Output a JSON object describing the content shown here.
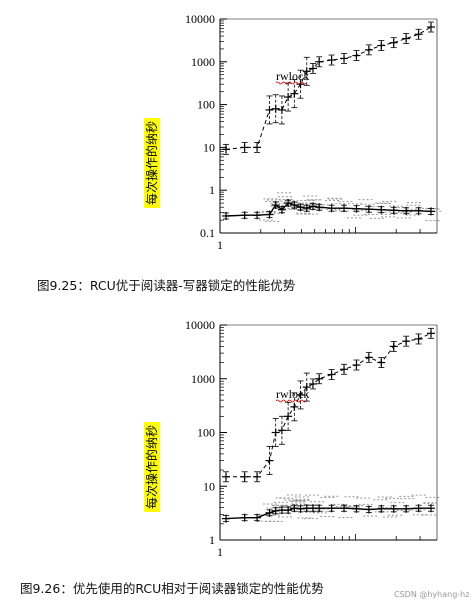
{
  "captions": {
    "fig1": "图9.25：RCU优于阅读器-写器锁定的性能优势",
    "fig2": "图9.26：优先使用的RCU相对于阅读器锁定的性能优势"
  },
  "watermark": "CSDN @hyhang-hz",
  "colors": {
    "highlight": "#ffff00",
    "rcu_line": "#000000",
    "rw_line": "#000000",
    "scatter": "#999999",
    "underline": "#cc0000"
  },
  "chart_data": [
    {
      "type": "line",
      "ylabel": "每次操作的纳秒",
      "xlabel": "",
      "annotation": "rwlock",
      "y_scale": "log",
      "ylim": [
        0.1,
        10000
      ],
      "xlim": [
        1,
        34
      ],
      "yticks": [
        "0.1",
        "1",
        "10",
        "100",
        "1000",
        "10000"
      ],
      "xticks": [
        "1"
      ],
      "series": [
        {
          "name": "rwlock",
          "style": "dashed",
          "x": [
            1,
            4,
            6,
            8,
            9,
            10,
            11,
            12,
            13,
            14,
            15,
            16,
            18,
            20,
            22,
            24,
            26,
            28,
            30,
            32,
            34
          ],
          "y": [
            9,
            10,
            10,
            75,
            80,
            75,
            150,
            180,
            300,
            600,
            700,
            1000,
            1100,
            1200,
            1400,
            1900,
            2400,
            2800,
            3500,
            4400,
            6500
          ]
        },
        {
          "name": "rcu",
          "style": "solid",
          "x": [
            1,
            4,
            6,
            8,
            9,
            10,
            11,
            12,
            13,
            14,
            15,
            16,
            18,
            20,
            22,
            24,
            26,
            28,
            30,
            32,
            34
          ],
          "y": [
            0.25,
            0.26,
            0.26,
            0.27,
            0.45,
            0.35,
            0.5,
            0.45,
            0.4,
            0.38,
            0.42,
            0.4,
            0.38,
            0.38,
            0.37,
            0.36,
            0.35,
            0.34,
            0.33,
            0.33,
            0.32
          ]
        }
      ]
    },
    {
      "type": "line",
      "ylabel": "每次操作的纳秒",
      "xlabel": "",
      "annotation": "rwlock",
      "y_scale": "log",
      "ylim": [
        1,
        10000
      ],
      "xlim": [
        1,
        34
      ],
      "yticks": [
        "1",
        "10",
        "100",
        "1000",
        "10000"
      ],
      "xticks": [
        "1"
      ],
      "series": [
        {
          "name": "rwlock",
          "style": "dashed",
          "x": [
            1,
            4,
            6,
            8,
            9,
            10,
            11,
            12,
            13,
            14,
            15,
            16,
            18,
            20,
            22,
            24,
            26,
            28,
            30,
            32,
            34
          ],
          "y": [
            15,
            15,
            15,
            30,
            100,
            110,
            200,
            300,
            500,
            700,
            800,
            1000,
            1200,
            1500,
            1800,
            2500,
            2000,
            4000,
            5000,
            5500,
            7000
          ]
        },
        {
          "name": "rcu",
          "style": "solid",
          "x": [
            1,
            4,
            6,
            8,
            9,
            10,
            11,
            12,
            13,
            14,
            15,
            16,
            18,
            20,
            22,
            24,
            26,
            28,
            30,
            32,
            34
          ],
          "y": [
            2.5,
            2.6,
            2.6,
            3.2,
            3.5,
            3.6,
            3.6,
            3.9,
            3.8,
            3.9,
            3.9,
            3.9,
            3.9,
            3.9,
            3.8,
            3.7,
            3.8,
            3.8,
            3.8,
            3.9,
            3.9
          ]
        }
      ]
    }
  ]
}
